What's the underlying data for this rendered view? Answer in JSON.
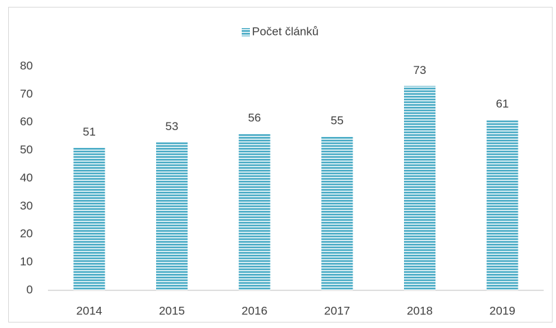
{
  "chart_data": {
    "type": "bar",
    "legend_position": "top",
    "categories": [
      "2014",
      "2015",
      "2016",
      "2017",
      "2018",
      "2019"
    ],
    "series": [
      {
        "name": "Počet článků",
        "color": "#4bacc6",
        "values": [
          51,
          53,
          56,
          55,
          73,
          61
        ]
      }
    ],
    "ylim": [
      0,
      80
    ],
    "yticks": [
      0,
      10,
      20,
      30,
      40,
      50,
      60,
      70,
      80
    ],
    "grid": false
  }
}
